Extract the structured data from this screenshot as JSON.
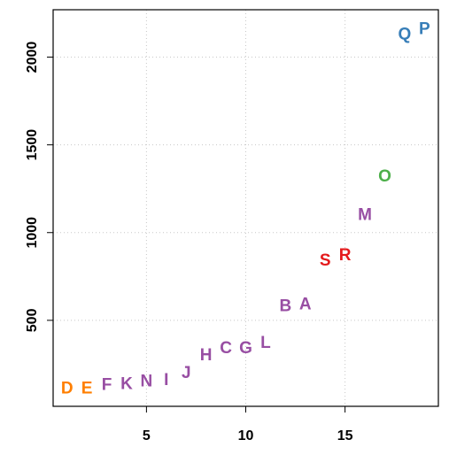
{
  "chart_data": {
    "type": "scatter",
    "title": "",
    "xlabel": "",
    "ylabel": "",
    "xlim": [
      0.3,
      19.7
    ],
    "ylim": [
      10,
      2270
    ],
    "grid": true,
    "x_ticks": [
      5,
      10,
      15
    ],
    "y_ticks": [
      500,
      1000,
      1500,
      2000
    ],
    "points": [
      {
        "label": "D",
        "x": 1,
        "y": 110,
        "color": "#FF7F00"
      },
      {
        "label": "E",
        "x": 2,
        "y": 110,
        "color": "#FF7F00"
      },
      {
        "label": "F",
        "x": 3,
        "y": 130,
        "color": "#984EA3"
      },
      {
        "label": "K",
        "x": 4,
        "y": 135,
        "color": "#984EA3"
      },
      {
        "label": "N",
        "x": 5,
        "y": 150,
        "color": "#984EA3"
      },
      {
        "label": "I",
        "x": 6,
        "y": 160,
        "color": "#984EA3"
      },
      {
        "label": "J",
        "x": 7,
        "y": 200,
        "color": "#984EA3"
      },
      {
        "label": "H",
        "x": 8,
        "y": 300,
        "color": "#984EA3"
      },
      {
        "label": "C",
        "x": 9,
        "y": 340,
        "color": "#984EA3"
      },
      {
        "label": "G",
        "x": 10,
        "y": 340,
        "color": "#984EA3"
      },
      {
        "label": "L",
        "x": 11,
        "y": 370,
        "color": "#984EA3"
      },
      {
        "label": "B",
        "x": 12,
        "y": 580,
        "color": "#984EA3"
      },
      {
        "label": "A",
        "x": 13,
        "y": 590,
        "color": "#984EA3"
      },
      {
        "label": "S",
        "x": 14,
        "y": 840,
        "color": "#E41A1C"
      },
      {
        "label": "R",
        "x": 15,
        "y": 870,
        "color": "#E41A1C"
      },
      {
        "label": "M",
        "x": 16,
        "y": 1100,
        "color": "#984EA3"
      },
      {
        "label": "O",
        "x": 17,
        "y": 1320,
        "color": "#4DAF4A"
      },
      {
        "label": "Q",
        "x": 18,
        "y": 2130,
        "color": "#377EB8"
      },
      {
        "label": "P",
        "x": 19,
        "y": 2160,
        "color": "#377EB8"
      }
    ]
  }
}
